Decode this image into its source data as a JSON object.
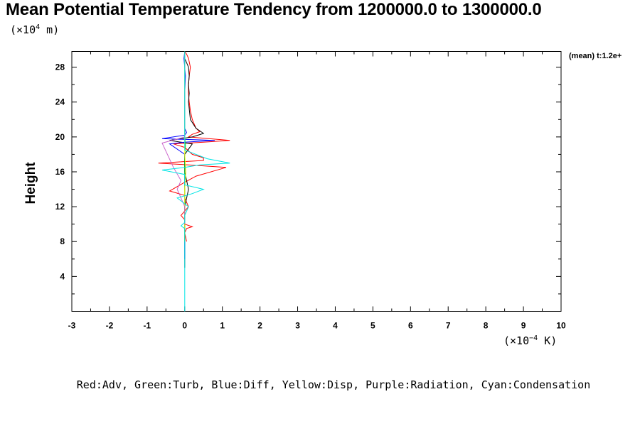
{
  "chart_data": {
    "type": "line",
    "title": "Mean Potential Temperature Tendency from 1200000.0 to 1300000.0",
    "ylabel": "Height",
    "y_unit_label": "(×10",
    "y_unit_exp": "4",
    "y_unit_tail": " m)",
    "x_unit_label": "(×10",
    "x_unit_exp": "−4",
    "x_unit_tail": " K)",
    "legend_note": "(mean) t:1.2e+",
    "caption": "Red:Adv, Green:Turb, Blue:Diff, Yellow:Disp, Purple:Radiation, Cyan:Condensation",
    "xlim": [
      -3,
      10
    ],
    "ylim": [
      0,
      29.8
    ],
    "xticks": [
      -3,
      -2,
      -1,
      0,
      1,
      2,
      3,
      4,
      5,
      6,
      7,
      8,
      9,
      10
    ],
    "yticks": [
      4,
      8,
      12,
      16,
      20,
      24,
      28
    ],
    "grid": false,
    "series": [
      {
        "color": "#ff0000",
        "x": [
          0.0,
          0.05,
          0.1,
          0.15,
          0.12,
          0.1,
          0.1,
          0.12,
          0.15,
          0.2,
          0.3,
          0.4,
          0.2,
          0.1,
          1.2,
          0.5,
          -0.3,
          0.0,
          0.2,
          0.5,
          0.5,
          -0.7,
          0.1,
          1.1,
          0.3,
          0.0,
          -0.4,
          0.0,
          0.0,
          0.1,
          -0.1,
          0.0,
          0.0,
          0.2,
          0.05,
          0.0,
          0.05
        ],
        "y": [
          29.8,
          29.5,
          29.0,
          28.0,
          27.0,
          26.0,
          25.0,
          24.0,
          23.0,
          22.0,
          21.0,
          20.6,
          20.3,
          20.0,
          19.6,
          19.4,
          19.2,
          18.8,
          18.0,
          17.6,
          17.3,
          17.0,
          16.8,
          16.5,
          15.5,
          14.8,
          13.8,
          13.3,
          13.0,
          12.0,
          11.0,
          10.5,
          10.0,
          9.7,
          9.5,
          9.0,
          8.0
        ]
      },
      {
        "color": "#000000",
        "x": [
          0.0,
          0.0,
          0.1,
          0.12,
          0.1,
          0.12,
          0.1,
          0.15,
          0.3,
          0.5,
          0.2,
          -0.4,
          0.2,
          0.0,
          0.0,
          0.1,
          0.0,
          0.0,
          0.0,
          0.0,
          0.0
        ],
        "y": [
          29.8,
          29.0,
          28.0,
          27.0,
          26.0,
          25.0,
          24.0,
          22.0,
          21.0,
          20.4,
          20.0,
          19.6,
          19.2,
          18.0,
          16.0,
          14.0,
          12.0,
          10.5,
          10.0,
          9.5,
          5.0
        ]
      },
      {
        "color": "#0000ff",
        "x": [
          0.0,
          -0.02,
          0.02,
          0.0,
          0.0,
          0.0,
          0.0,
          0.05,
          0.0,
          -0.6,
          0.8,
          0.0,
          -0.4,
          0.0,
          0.0,
          0.0,
          0.0,
          0.0,
          0.0,
          0.0
        ],
        "y": [
          29.8,
          29.0,
          27.0,
          25.0,
          24.0,
          22.0,
          21.0,
          20.5,
          20.2,
          19.8,
          19.6,
          19.4,
          19.2,
          18.0,
          16.0,
          14.0,
          12.0,
          10.0,
          8.0,
          6.0
        ]
      },
      {
        "color": "#00cc00",
        "x": [
          0.0,
          0.0,
          0.0,
          0.02,
          0.0,
          0.0,
          0.0,
          0.0,
          0.0,
          0.0,
          0.0
        ],
        "y": [
          29.8,
          24.0,
          20.0,
          19.0,
          18.0,
          17.0,
          16.0,
          14.0,
          12.0,
          10.0,
          8.0
        ]
      },
      {
        "color": "#ffff00",
        "x": [
          0.0,
          0.0,
          0.03,
          0.0,
          0.0
        ],
        "y": [
          29.8,
          18.0,
          16.0,
          14.0,
          8.0
        ]
      },
      {
        "color": "#cc66cc",
        "x": [
          0.0,
          0.0,
          0.0,
          0.0,
          -0.6,
          -0.3,
          -0.1,
          -0.2,
          0.0,
          0.0
        ],
        "y": [
          29.8,
          24.0,
          21.0,
          20.0,
          19.3,
          16.5,
          15.0,
          14.0,
          12.0,
          10.0
        ]
      },
      {
        "color": "#00e5e5",
        "x": [
          0.0,
          0.0,
          0.0,
          0.0,
          0.0,
          0.0,
          0.6,
          1.2,
          0.4,
          0.0,
          -0.6,
          0.0,
          0.0,
          0.5,
          0.2,
          -0.2,
          0.1,
          0.0,
          0.0,
          -0.1,
          0.0,
          0.0,
          0.0,
          0.0
        ],
        "y": [
          29.8,
          28.0,
          24.0,
          22.0,
          20.0,
          18.5,
          17.5,
          17.0,
          16.8,
          16.5,
          16.2,
          15.7,
          14.5,
          14.0,
          13.5,
          13.0,
          12.0,
          11.0,
          10.2,
          9.8,
          9.5,
          8.0,
          4.0,
          0.0
        ]
      }
    ]
  }
}
